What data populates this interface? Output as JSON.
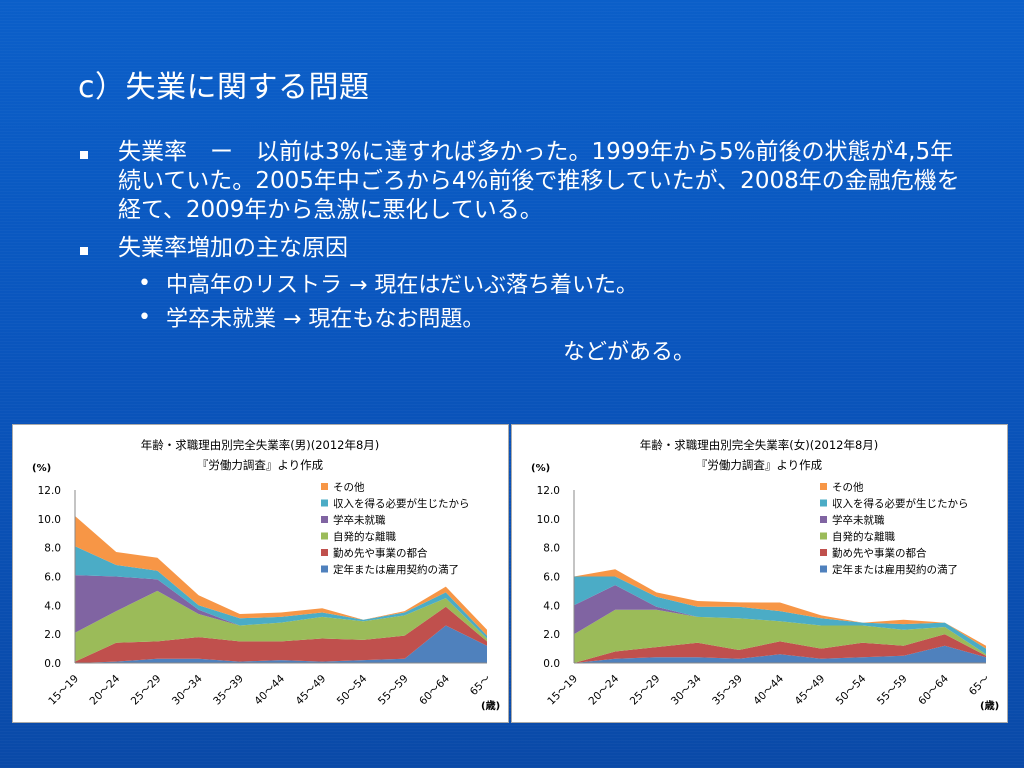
{
  "slide": {
    "title": "c）失業に関する問題",
    "bullet1": "失業率　ー　以前は3%に達すれば多かった。1999年から5%前後の状態が4,5年続いていた。2005年中ごろから4%前後で推移していたが、2008年の金融危機を経て、2009年から急激に悪化している。",
    "bullet2": "失業率増加の主な原因",
    "sub1": "中高年のリストラ → 現在はだいぶ落ち着いた。",
    "sub2": "学卒未就業 → 現在もなお問題。",
    "tail": "などがある。",
    "bullet_mark": "•"
  },
  "chart_data": [
    {
      "type": "area",
      "stacked": true,
      "title": "年齢・求職理由別完全失業率(男)(2012年8月)",
      "subtitle": "『労働力調査』より作成",
      "ylabel": "(%)",
      "xlabel": "(歳)",
      "ylim": [
        0,
        12
      ],
      "yticks": [
        "0.0",
        "2.0",
        "4.0",
        "6.0",
        "8.0",
        "10.0",
        "12.0"
      ],
      "categories": [
        "15～19",
        "20～24",
        "25～29",
        "30～34",
        "35～39",
        "40～44",
        "45～49",
        "50～54",
        "55～59",
        "60～64",
        "65～"
      ],
      "legend_position": "top-right",
      "series": [
        {
          "name": "定年または雇用契約の満了",
          "color": "#4f81bd",
          "values": [
            0.0,
            0.1,
            0.3,
            0.3,
            0.1,
            0.2,
            0.1,
            0.2,
            0.3,
            2.6,
            1.2
          ]
        },
        {
          "name": "勤め先や事業の都合",
          "color": "#c0504d",
          "values": [
            0.1,
            1.3,
            1.2,
            1.5,
            1.4,
            1.3,
            1.6,
            1.4,
            1.6,
            1.3,
            0.3
          ]
        },
        {
          "name": "自発的な離職",
          "color": "#9bbb59",
          "values": [
            2.0,
            2.2,
            3.5,
            1.6,
            1.1,
            1.3,
            1.5,
            1.3,
            1.4,
            0.6,
            0.2
          ]
        },
        {
          "name": "学卒未就職",
          "color": "#8064a2",
          "values": [
            4.0,
            2.4,
            0.8,
            0.3,
            0.0,
            0.0,
            0.0,
            0.0,
            0.0,
            0.0,
            0.0
          ]
        },
        {
          "name": "収入を得る必要が生じたから",
          "color": "#4bacc6",
          "values": [
            2.0,
            0.8,
            0.6,
            0.3,
            0.5,
            0.4,
            0.3,
            0.1,
            0.2,
            0.4,
            0.2
          ]
        },
        {
          "name": "その他",
          "color": "#f79646",
          "values": [
            2.1,
            0.9,
            0.9,
            0.7,
            0.3,
            0.3,
            0.3,
            0.0,
            0.1,
            0.4,
            0.4
          ]
        }
      ]
    },
    {
      "type": "area",
      "stacked": true,
      "title": "年齢・求職理由別完全失業率(女)(2012年8月)",
      "subtitle": "『労働力調査』より作成",
      "ylabel": "(%)",
      "xlabel": "(歳)",
      "ylim": [
        0,
        12
      ],
      "yticks": [
        "0.0",
        "2.0",
        "4.0",
        "6.0",
        "8.0",
        "10.0",
        "12.0"
      ],
      "categories": [
        "15～19",
        "20～24",
        "25～29",
        "30～34",
        "35～39",
        "40～44",
        "45～49",
        "50～54",
        "55～59",
        "60～64",
        "65～"
      ],
      "legend_position": "top-right",
      "series": [
        {
          "name": "定年または雇用契約の満了",
          "color": "#4f81bd",
          "values": [
            0.0,
            0.3,
            0.4,
            0.4,
            0.3,
            0.6,
            0.3,
            0.4,
            0.5,
            1.2,
            0.4
          ]
        },
        {
          "name": "勤め先や事業の都合",
          "color": "#c0504d",
          "values": [
            0.0,
            0.5,
            0.7,
            1.0,
            0.6,
            0.9,
            0.7,
            1.0,
            0.7,
            0.8,
            0.1
          ]
        },
        {
          "name": "自発的な離職",
          "color": "#9bbb59",
          "values": [
            2.0,
            2.9,
            2.6,
            1.8,
            2.2,
            1.4,
            1.6,
            1.2,
            1.1,
            0.5,
            0.1
          ]
        },
        {
          "name": "学卒未就職",
          "color": "#8064a2",
          "values": [
            2.0,
            1.7,
            0.2,
            0.0,
            0.0,
            0.0,
            0.0,
            0.0,
            0.0,
            0.0,
            0.0
          ]
        },
        {
          "name": "収入を得る必要が生じたから",
          "color": "#4bacc6",
          "values": [
            2.0,
            0.6,
            0.7,
            0.7,
            0.8,
            0.7,
            0.5,
            0.2,
            0.4,
            0.3,
            0.4
          ]
        },
        {
          "name": "その他",
          "color": "#f79646",
          "values": [
            0.0,
            0.5,
            0.3,
            0.4,
            0.3,
            0.6,
            0.2,
            0.0,
            0.3,
            0.0,
            0.2
          ]
        }
      ]
    }
  ]
}
